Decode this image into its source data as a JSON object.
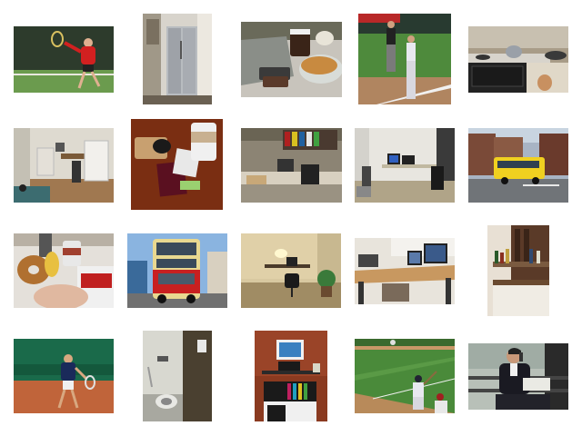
{
  "grid": {
    "rows": 4,
    "columns": 5,
    "background": "#ffffff",
    "thumbnails": [
      {
        "subject": "tennis-player-red-shirt"
      },
      {
        "subject": "kitchen-refrigerator"
      },
      {
        "subject": "coffee-croissant-tray"
      },
      {
        "subject": "baseball-players-field"
      },
      {
        "subject": "kitchen-stove"
      },
      {
        "subject": "room-refrigerator-desk"
      },
      {
        "subject": "passport-coffee-table"
      },
      {
        "subject": "office-cubicle"
      },
      {
        "subject": "office-computer-desk"
      },
      {
        "subject": "yellow-bus-street"
      },
      {
        "subject": "donut-coffee-magazine"
      },
      {
        "subject": "double-decker-bus"
      },
      {
        "subject": "desk-lamp-chair"
      },
      {
        "subject": "computer-workstation"
      },
      {
        "subject": "bar-bottles"
      },
      {
        "subject": "tennis-player-court"
      },
      {
        "subject": "bathroom-toilet"
      },
      {
        "subject": "desk-shelf-monitor"
      },
      {
        "subject": "baseball-batter"
      },
      {
        "subject": "man-phone-bench"
      }
    ]
  }
}
